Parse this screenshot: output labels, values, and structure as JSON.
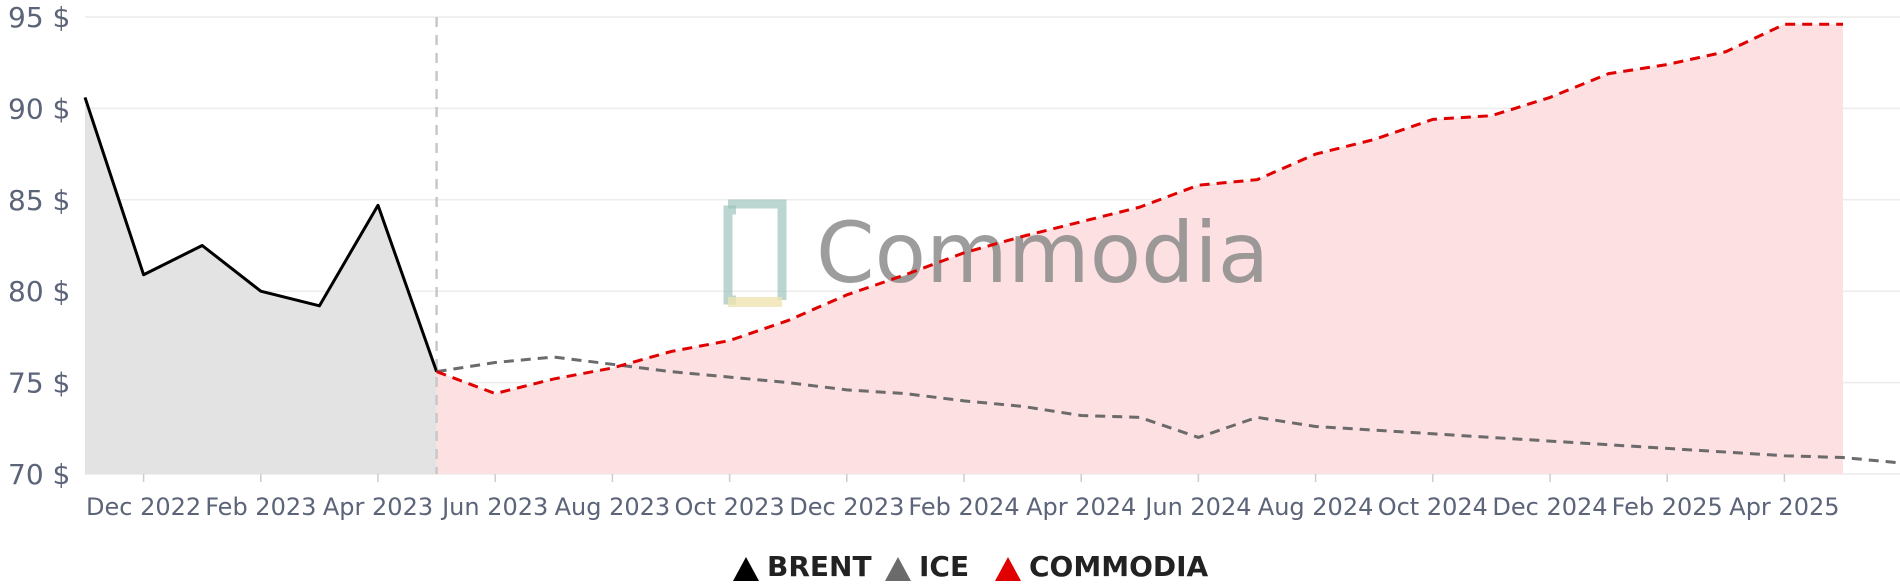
{
  "chart_data": {
    "type": "line",
    "y_axis": {
      "min": 70,
      "max": 95,
      "ticks": [
        {
          "value": 70,
          "label": "70 $"
        },
        {
          "value": 75,
          "label": "75 $"
        },
        {
          "value": 80,
          "label": "80 $"
        },
        {
          "value": 85,
          "label": "85 $"
        },
        {
          "value": 90,
          "label": "90 $"
        },
        {
          "value": 95,
          "label": "95 $"
        }
      ]
    },
    "x_axis": {
      "ticks": [
        "Dec 2022",
        "Feb 2023",
        "Apr 2023",
        "Jun 2023",
        "Aug 2023",
        "Oct 2023",
        "Dec 2023",
        "Feb 2024",
        "Apr 2024",
        "Jun 2024",
        "Aug 2024",
        "Oct 2024",
        "Dec 2024",
        "Feb 2025",
        "Apr 2025"
      ]
    },
    "forecast_start": "May 2023",
    "grid": true,
    "legend_position": "bottom-center",
    "watermark": "Commodia",
    "series": [
      {
        "name": "BRENT",
        "color": "#000000",
        "style": "solid",
        "fill": "#e3e3e3",
        "points": [
          {
            "x": "Nov 2022",
            "y": 90.6
          },
          {
            "x": "Dec 2022",
            "y": 80.9
          },
          {
            "x": "Jan 2023",
            "y": 82.5
          },
          {
            "x": "Feb 2023",
            "y": 80.0
          },
          {
            "x": "Mar 2023",
            "y": 79.2
          },
          {
            "x": "Apr 2023",
            "y": 84.7
          },
          {
            "x": "May 2023",
            "y": 75.6
          }
        ]
      },
      {
        "name": "ICE",
        "color": "#6b6b6b",
        "style": "dashed",
        "points": [
          {
            "x": "May 2023",
            "y": 75.6
          },
          {
            "x": "Jun 2023",
            "y": 76.1
          },
          {
            "x": "Jul 2023",
            "y": 76.4
          },
          {
            "x": "Aug 2023",
            "y": 76.0
          },
          {
            "x": "Sep 2023",
            "y": 75.6
          },
          {
            "x": "Oct 2023",
            "y": 75.3
          },
          {
            "x": "Nov 2023",
            "y": 75.0
          },
          {
            "x": "Dec 2023",
            "y": 74.6
          },
          {
            "x": "Jan 2024",
            "y": 74.4
          },
          {
            "x": "Feb 2024",
            "y": 74.0
          },
          {
            "x": "Mar 2024",
            "y": 73.7
          },
          {
            "x": "Apr 2024",
            "y": 73.2
          },
          {
            "x": "May 2024",
            "y": 73.1
          },
          {
            "x": "Jun 2024",
            "y": 72.0
          },
          {
            "x": "Jul 2024",
            "y": 73.1
          },
          {
            "x": "Aug 2024",
            "y": 72.6
          },
          {
            "x": "Sep 2024",
            "y": 72.4
          },
          {
            "x": "Oct 2024",
            "y": 72.2
          },
          {
            "x": "Nov 2024",
            "y": 72.0
          },
          {
            "x": "Dec 2024",
            "y": 71.8
          },
          {
            "x": "Jan 2025",
            "y": 71.6
          },
          {
            "x": "Feb 2025",
            "y": 71.4
          },
          {
            "x": "Mar 2025",
            "y": 71.2
          },
          {
            "x": "Apr 2025",
            "y": 71.0
          },
          {
            "x": "May 2025",
            "y": 70.9
          },
          {
            "x": "Jun 2025",
            "y": 70.6
          }
        ]
      },
      {
        "name": "COMMODIA",
        "color": "#e00000",
        "style": "dashed",
        "fill": "#fde0e2",
        "points": [
          {
            "x": "May 2023",
            "y": 75.6
          },
          {
            "x": "Jun 2023",
            "y": 74.4
          },
          {
            "x": "Jul 2023",
            "y": 75.2
          },
          {
            "x": "Aug 2023",
            "y": 75.8
          },
          {
            "x": "Sep 2023",
            "y": 76.7
          },
          {
            "x": "Oct 2023",
            "y": 77.3
          },
          {
            "x": "Nov 2023",
            "y": 78.4
          },
          {
            "x": "Dec 2023",
            "y": 79.8
          },
          {
            "x": "Jan 2024",
            "y": 80.9
          },
          {
            "x": "Feb 2024",
            "y": 82.1
          },
          {
            "x": "Mar 2024",
            "y": 83.0
          },
          {
            "x": "Apr 2024",
            "y": 83.8
          },
          {
            "x": "May 2024",
            "y": 84.6
          },
          {
            "x": "Jun 2024",
            "y": 85.8
          },
          {
            "x": "Jul 2024",
            "y": 86.1
          },
          {
            "x": "Aug 2024",
            "y": 87.5
          },
          {
            "x": "Sep 2024",
            "y": 88.3
          },
          {
            "x": "Oct 2024",
            "y": 89.4
          },
          {
            "x": "Nov 2024",
            "y": 89.6
          },
          {
            "x": "Dec 2024",
            "y": 90.6
          },
          {
            "x": "Jan 2025",
            "y": 91.9
          },
          {
            "x": "Feb 2025",
            "y": 92.4
          },
          {
            "x": "Mar 2025",
            "y": 93.1
          },
          {
            "x": "Apr 2025",
            "y": 94.6
          },
          {
            "x": "May 2025",
            "y": 94.6
          }
        ]
      }
    ]
  }
}
